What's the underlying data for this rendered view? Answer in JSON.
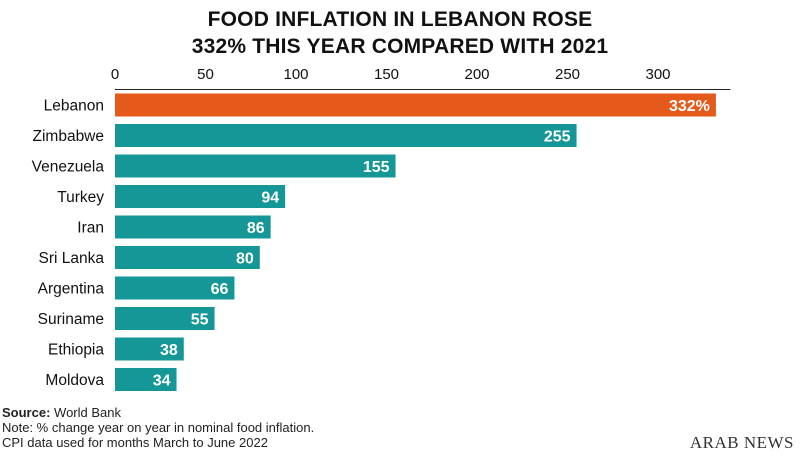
{
  "title_line1": "FOOD INFLATION IN LEBANON ROSE",
  "title_line2": "332% THIS YEAR COMPARED WITH 2021",
  "footer": {
    "source_label": "Source:",
    "source_value": "World Bank",
    "note": "Note: % change year on year in nominal food inflation.",
    "data_note": "CPI data used for months March to June 2022"
  },
  "brand": "ARAB NEWS",
  "colors": {
    "highlight": "#e55a1a",
    "bar": "#159697",
    "axis": "#222222",
    "label_text": "#ffffff"
  },
  "chart_data": {
    "type": "bar",
    "orientation": "horizontal",
    "categories": [
      "Lebanon",
      "Zimbabwe",
      "Venezuela",
      "Turkey",
      "Iran",
      "Sri Lanka",
      "Argentina",
      "Suriname",
      "Ethiopia",
      "Moldova"
    ],
    "values": [
      332,
      255,
      155,
      94,
      86,
      80,
      66,
      55,
      38,
      34
    ],
    "data_labels": [
      "332%",
      "255",
      "155",
      "94",
      "86",
      "80",
      "66",
      "55",
      "38",
      "34"
    ],
    "highlight_index": 0,
    "xticks": [
      "0",
      "50",
      "100",
      "150",
      "200",
      "250",
      "300"
    ],
    "tick_values": [
      0,
      50,
      100,
      150,
      200,
      250,
      300
    ],
    "xlim": [
      0,
      340
    ],
    "xaxis_position": "top",
    "grid": false,
    "title": "FOOD INFLATION IN LEBANON ROSE 332% THIS YEAR COMPARED WITH 2021",
    "xlabel": "",
    "ylabel": ""
  }
}
